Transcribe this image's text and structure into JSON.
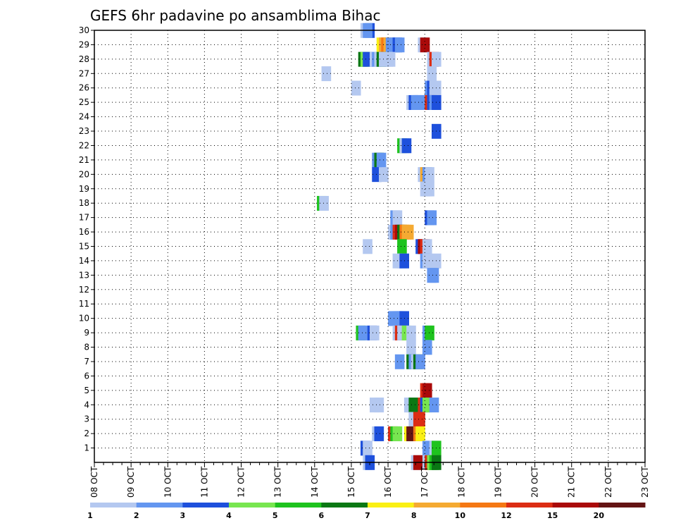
{
  "chart_data": {
    "type": "heatmap",
    "title": "GEFS 6hr padavine po ansamblima Bihac",
    "xlabel": "",
    "ylabel": "",
    "x_tick_labels": [
      "08 OCT",
      "09 OCT",
      "10 OCT",
      "11 OCT",
      "12 OCT",
      "13 OCT",
      "14 OCT",
      "15 OCT",
      "16 OCT",
      "17 OCT",
      "18 OCT",
      "19 OCT",
      "20 OCT",
      "21 OCT",
      "22 OCT",
      "23 OCT"
    ],
    "y_tick_labels": [
      "1",
      "2",
      "3",
      "4",
      "5",
      "6",
      "7",
      "8",
      "9",
      "10",
      "11",
      "12",
      "13",
      "14",
      "15",
      "16",
      "17",
      "18",
      "19",
      "20",
      "21",
      "22",
      "23",
      "24",
      "25",
      "26",
      "27",
      "28",
      "29",
      "30"
    ],
    "ylim": [
      0,
      30
    ],
    "x_steps_per_day": 4,
    "grid": true,
    "legend": {
      "placement": "bottom",
      "labels": [
        "1",
        "2",
        "3",
        "4",
        "5",
        "6",
        "7",
        "8",
        "10",
        "12",
        "15",
        "20"
      ],
      "colors": [
        "#b4c8f0",
        "#6496f0",
        "#1e50dc",
        "#78e650",
        "#1ec31e",
        "#0a7814",
        "#faf014",
        "#f5aa32",
        "#f57814",
        "#dc2d14",
        "#aa0a0a",
        "#641414"
      ]
    },
    "cells": [
      [
        30.0,
        30,
        2
      ],
      [
        29.5,
        30,
        0
      ],
      [
        29.75,
        30,
        1
      ],
      [
        31.25,
        29,
        6
      ],
      [
        31.5,
        29,
        7
      ],
      [
        31.75,
        29,
        8
      ],
      [
        32.0,
        29,
        7
      ],
      [
        32.25,
        29,
        1
      ],
      [
        32.75,
        29,
        1
      ],
      [
        33.0,
        29,
        2
      ],
      [
        33.25,
        29,
        1
      ],
      [
        35.75,
        29,
        0
      ],
      [
        36.0,
        29,
        10
      ],
      [
        31.5,
        28,
        0
      ],
      [
        32.0,
        28,
        0
      ],
      [
        32.25,
        28,
        0
      ],
      [
        36.75,
        28,
        0
      ],
      [
        37.0,
        28,
        9
      ],
      [
        37.25,
        28,
        0
      ],
      [
        29.25,
        28,
        5
      ],
      [
        29.5,
        28,
        3
      ],
      [
        29.75,
        28,
        2
      ],
      [
        30.5,
        28,
        0
      ],
      [
        30.75,
        28,
        1
      ],
      [
        31.0,
        28,
        0
      ],
      [
        31.25,
        28,
        5
      ],
      [
        31.5,
        28,
        0
      ],
      [
        36.75,
        27,
        0
      ],
      [
        28.5,
        26,
        0
      ],
      [
        25.25,
        27,
        0
      ],
      [
        36.5,
        26,
        1
      ],
      [
        36.75,
        26,
        2
      ],
      [
        37.0,
        26,
        0
      ],
      [
        37.25,
        26,
        0
      ],
      [
        34.5,
        25,
        0
      ],
      [
        34.75,
        25,
        2
      ],
      [
        35.0,
        25,
        1
      ],
      [
        35.25,
        25,
        1
      ],
      [
        35.5,
        25,
        1
      ],
      [
        36.0,
        25,
        1
      ],
      [
        36.5,
        25,
        9
      ],
      [
        36.75,
        25,
        2
      ],
      [
        37.0,
        25,
        1
      ],
      [
        37.25,
        25,
        2
      ],
      [
        37.25,
        23,
        2
      ],
      [
        33.5,
        22,
        4
      ],
      [
        33.75,
        22,
        0
      ],
      [
        34.0,
        22,
        2
      ],
      [
        30.75,
        21,
        1
      ],
      [
        31.0,
        21,
        5
      ],
      [
        31.25,
        21,
        1
      ],
      [
        30.75,
        20,
        2
      ],
      [
        31.5,
        20,
        0
      ],
      [
        35.75,
        20,
        0
      ],
      [
        36.0,
        20,
        7
      ],
      [
        36.25,
        20,
        1
      ],
      [
        36.5,
        20,
        0
      ],
      [
        36.0,
        19,
        0
      ],
      [
        36.25,
        19,
        0
      ],
      [
        36.5,
        19,
        0
      ],
      [
        24.75,
        18,
        4
      ],
      [
        25.0,
        18,
        0
      ],
      [
        32.75,
        17,
        1
      ],
      [
        33.0,
        17,
        0
      ],
      [
        36.5,
        17,
        2
      ],
      [
        36.75,
        17,
        1
      ],
      [
        32.5,
        16,
        0
      ],
      [
        32.75,
        16,
        1
      ],
      [
        33.0,
        16,
        9
      ],
      [
        33.25,
        16,
        10
      ],
      [
        33.5,
        16,
        5
      ],
      [
        33.75,
        16,
        8
      ],
      [
        34.0,
        16,
        7
      ],
      [
        34.25,
        16,
        7
      ],
      [
        29.75,
        15,
        0
      ],
      [
        33.5,
        15,
        4
      ],
      [
        35.5,
        15,
        2
      ],
      [
        35.75,
        15,
        10
      ],
      [
        36.0,
        15,
        9
      ],
      [
        36.25,
        15,
        0
      ],
      [
        33.0,
        14,
        0
      ],
      [
        33.5,
        14,
        0
      ],
      [
        33.75,
        14,
        2
      ],
      [
        36.0,
        14,
        1
      ],
      [
        36.25,
        14,
        0
      ],
      [
        37.25,
        14,
        0
      ],
      [
        36.75,
        13,
        1
      ],
      [
        37.0,
        13,
        1
      ],
      [
        32.5,
        10,
        1
      ],
      [
        32.75,
        10,
        1
      ],
      [
        33.0,
        10,
        1
      ],
      [
        33.25,
        10,
        1
      ],
      [
        33.5,
        10,
        1
      ],
      [
        33.75,
        10,
        2
      ],
      [
        29.0,
        9,
        4
      ],
      [
        29.25,
        9,
        1
      ],
      [
        30.25,
        9,
        2
      ],
      [
        30.5,
        9,
        0
      ],
      [
        33.0,
        9,
        0
      ],
      [
        33.25,
        9,
        9
      ],
      [
        33.5,
        9,
        0
      ],
      [
        34.0,
        9,
        3
      ],
      [
        34.5,
        9,
        0
      ],
      [
        36.25,
        9,
        1
      ],
      [
        36.5,
        9,
        4
      ],
      [
        34.5,
        8,
        0
      ],
      [
        36.25,
        8,
        1
      ],
      [
        33.25,
        7,
        1
      ],
      [
        34.5,
        7,
        5
      ],
      [
        34.75,
        7,
        1
      ],
      [
        35.0,
        7,
        0
      ],
      [
        35.25,
        7,
        5
      ],
      [
        35.5,
        7,
        1
      ],
      [
        36.0,
        5,
        9
      ],
      [
        36.25,
        5,
        10
      ],
      [
        30.5,
        4,
        0
      ],
      [
        31.0,
        4,
        0
      ],
      [
        34.25,
        4,
        0
      ],
      [
        34.5,
        4,
        0
      ],
      [
        34.75,
        4,
        5
      ],
      [
        35.75,
        4,
        9
      ],
      [
        36.0,
        4,
        2
      ],
      [
        36.25,
        4,
        3
      ],
      [
        37.0,
        4,
        1
      ],
      [
        34.75,
        3,
        0
      ],
      [
        35.25,
        3,
        9
      ],
      [
        35.5,
        3,
        9
      ],
      [
        30.75,
        2,
        0
      ],
      [
        31.0,
        2,
        2
      ],
      [
        32.5,
        2,
        9
      ],
      [
        32.75,
        2,
        4
      ],
      [
        33.0,
        2,
        3
      ],
      [
        34.25,
        2,
        6
      ],
      [
        34.5,
        2,
        11
      ],
      [
        35.25,
        2,
        8
      ],
      [
        35.5,
        2,
        6
      ],
      [
        29.5,
        1,
        2
      ],
      [
        29.75,
        1,
        0
      ],
      [
        36.25,
        1,
        1
      ],
      [
        37.0,
        1,
        0
      ],
      [
        37.25,
        1,
        4
      ],
      [
        29.75,
        0,
        0
      ],
      [
        30.0,
        0,
        2
      ],
      [
        35.0,
        0,
        0
      ],
      [
        35.25,
        0,
        10
      ],
      [
        36.25,
        0,
        0
      ],
      [
        36.5,
        0,
        9
      ],
      [
        36.75,
        0,
        3
      ],
      [
        37.0,
        0,
        4
      ],
      [
        37.25,
        0,
        5
      ]
    ]
  }
}
